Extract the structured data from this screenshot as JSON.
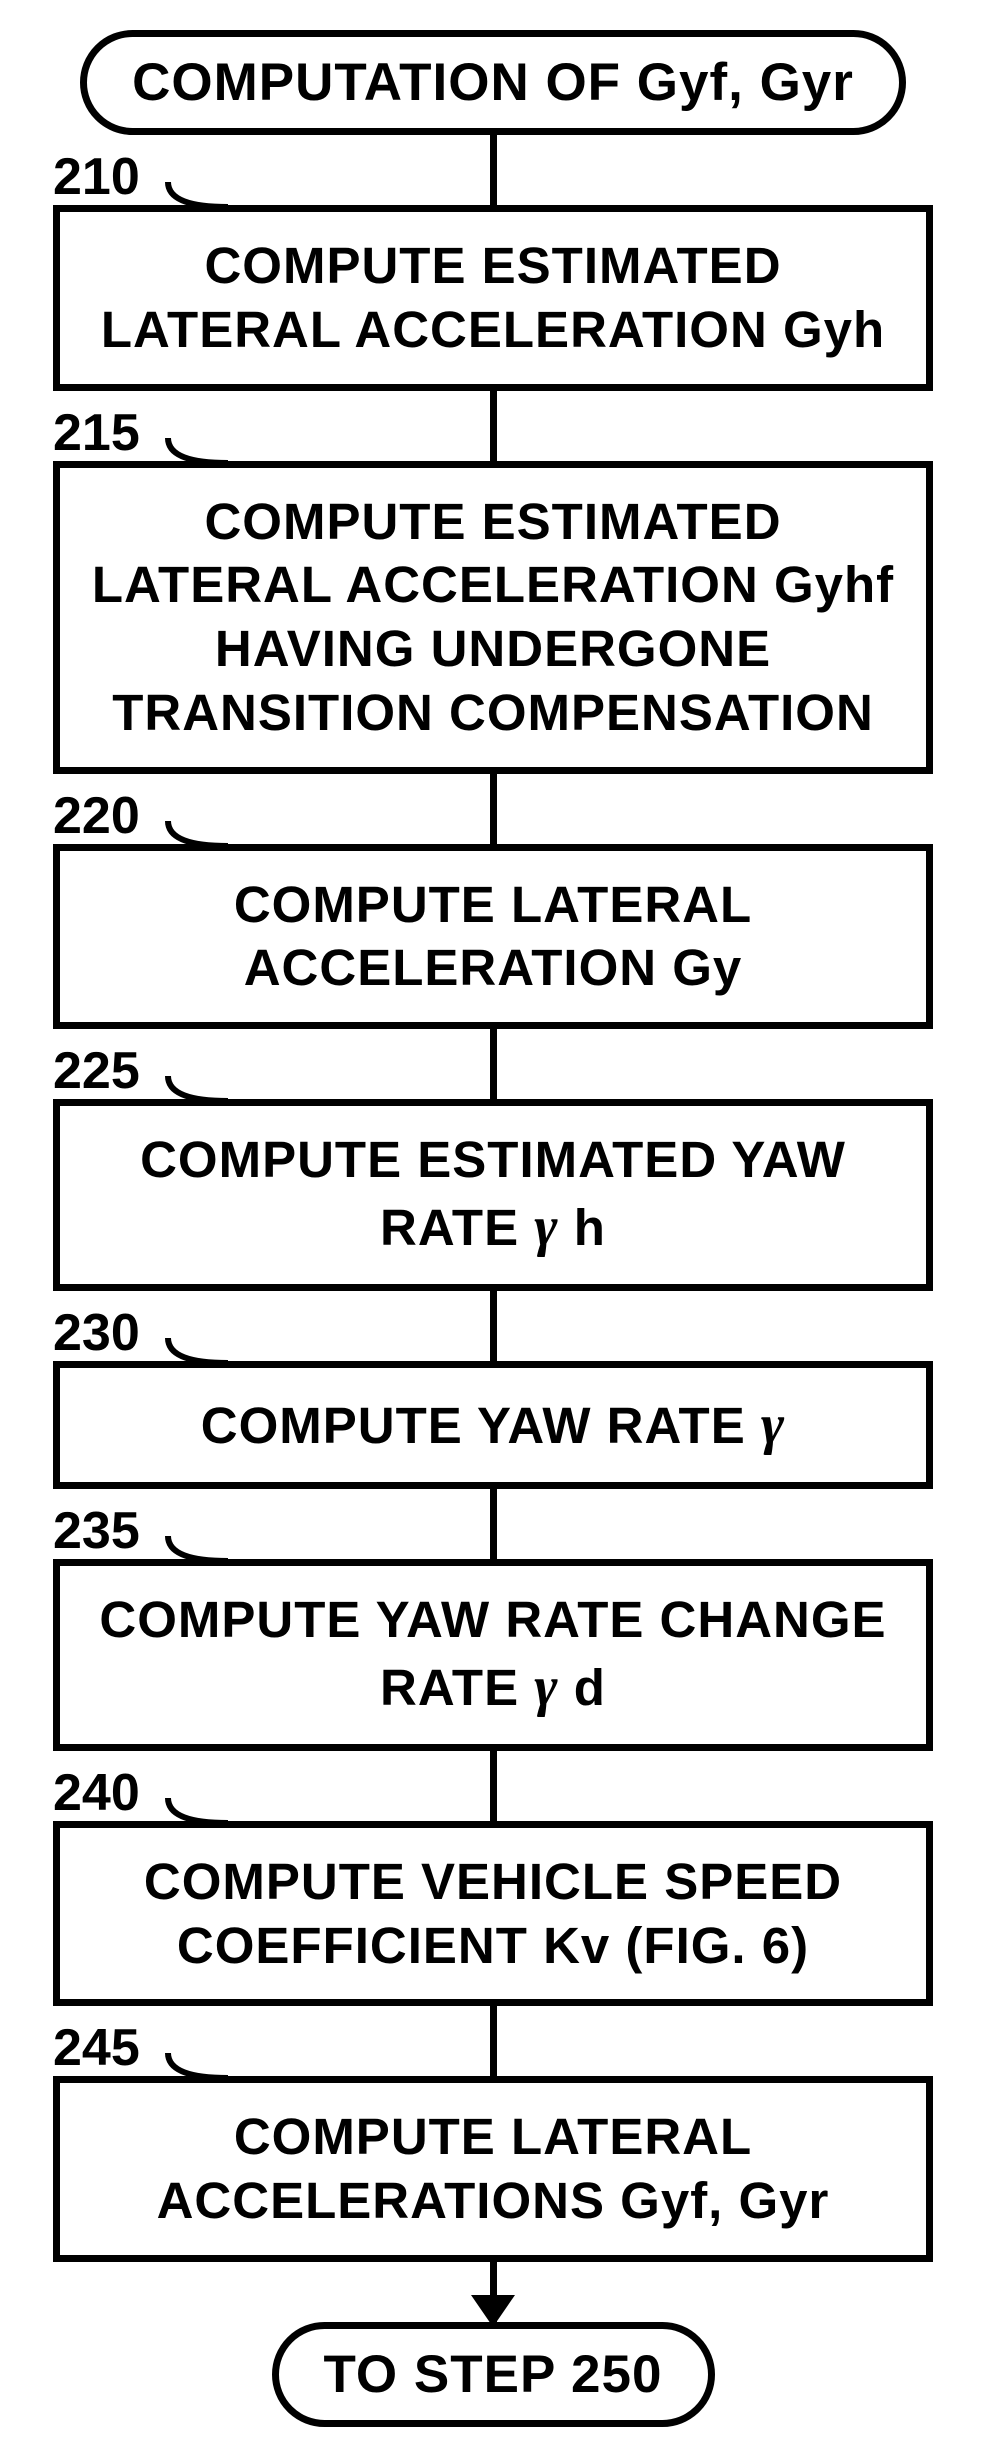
{
  "flowchart": {
    "type": "flowchart",
    "background_color": "#ffffff",
    "border_color": "#000000",
    "border_width": 7,
    "font_family": "Arial",
    "font_weight": "bold",
    "text_color": "#000000",
    "start": {
      "label": "COMPUTATION OF Gyf, Gyr",
      "shape": "rounded"
    },
    "end": {
      "label": "TO STEP 250",
      "shape": "rounded"
    },
    "steps": [
      {
        "number": "210",
        "lines": [
          "COMPUTE ESTIMATED",
          "LATERAL ACCELERATION Gyh"
        ]
      },
      {
        "number": "215",
        "lines": [
          "COMPUTE ESTIMATED",
          "LATERAL ACCELERATION Gyhf",
          "HAVING UNDERGONE",
          "TRANSITION COMPENSATION"
        ]
      },
      {
        "number": "220",
        "lines": [
          "COMPUTE LATERAL",
          "ACCELERATION Gy"
        ]
      },
      {
        "number": "225",
        "lines_html": "COMPUTE ESTIMATED YAW<br>RATE <span class='gamma'>γ</span> h"
      },
      {
        "number": "230",
        "lines_html": "COMPUTE YAW RATE <span class='gamma'>γ</span>"
      },
      {
        "number": "235",
        "lines_html": "COMPUTE YAW RATE CHANGE<br>RATE <span class='gamma'>γ</span> d"
      },
      {
        "number": "240",
        "lines": [
          "COMPUTE VEHICLE SPEED",
          "COEFFICIENT Kv (FIG. 6)"
        ]
      },
      {
        "number": "245",
        "lines": [
          "COMPUTE LATERAL",
          "ACCELERATIONS Gyf, Gyr"
        ]
      }
    ]
  }
}
